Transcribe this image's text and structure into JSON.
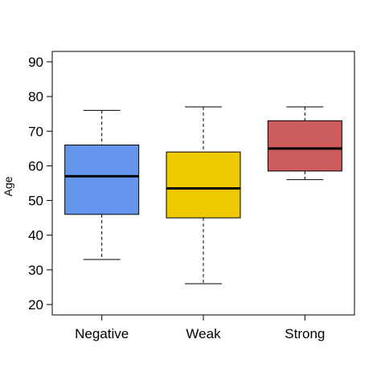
{
  "chart_data": {
    "type": "box",
    "ylabel": "Age",
    "xlabel": "",
    "title": "",
    "ylim": [
      17,
      93
    ],
    "yticks": [
      20,
      30,
      40,
      50,
      60,
      70,
      80,
      90
    ],
    "grid": false,
    "categories": [
      "Negative",
      "Weak",
      "Strong"
    ],
    "boxes": [
      {
        "name": "Negative",
        "min": 33,
        "q1": 46,
        "median": 57,
        "q3": 66,
        "max": 76,
        "color": "#6495ED"
      },
      {
        "name": "Weak",
        "min": 26,
        "q1": 45,
        "median": 53.5,
        "q3": 64,
        "max": 77,
        "color": "#EEC900"
      },
      {
        "name": "Strong",
        "min": 56,
        "q1": 58.5,
        "median": 65,
        "q3": 73,
        "max": 77,
        "color": "#CD5C5C"
      }
    ]
  }
}
